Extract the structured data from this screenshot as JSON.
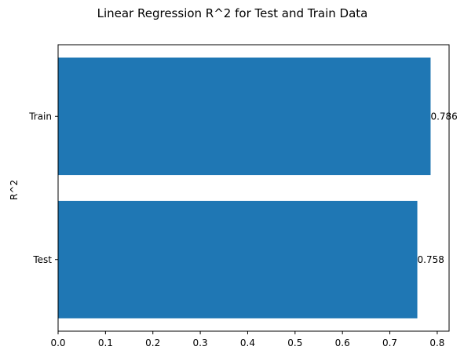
{
  "chart_data": {
    "type": "bar",
    "orientation": "horizontal",
    "title": "Linear Regression R^2 for Test and Train Data",
    "xlabel": "",
    "ylabel": "R^2",
    "categories": [
      "Test",
      "Train"
    ],
    "values": [
      0.758,
      0.786
    ],
    "value_labels": [
      "0.758",
      "0.786"
    ],
    "xlim": [
      0,
      0.825
    ],
    "xticks": [
      0.0,
      0.1,
      0.2,
      0.3,
      0.4,
      0.5,
      0.6,
      0.7,
      0.8
    ],
    "xtick_labels": [
      "0.0",
      "0.1",
      "0.2",
      "0.3",
      "0.4",
      "0.5",
      "0.6",
      "0.7",
      "0.8"
    ],
    "grid": false,
    "legend": "none",
    "bar_color": "#1f77b4"
  }
}
